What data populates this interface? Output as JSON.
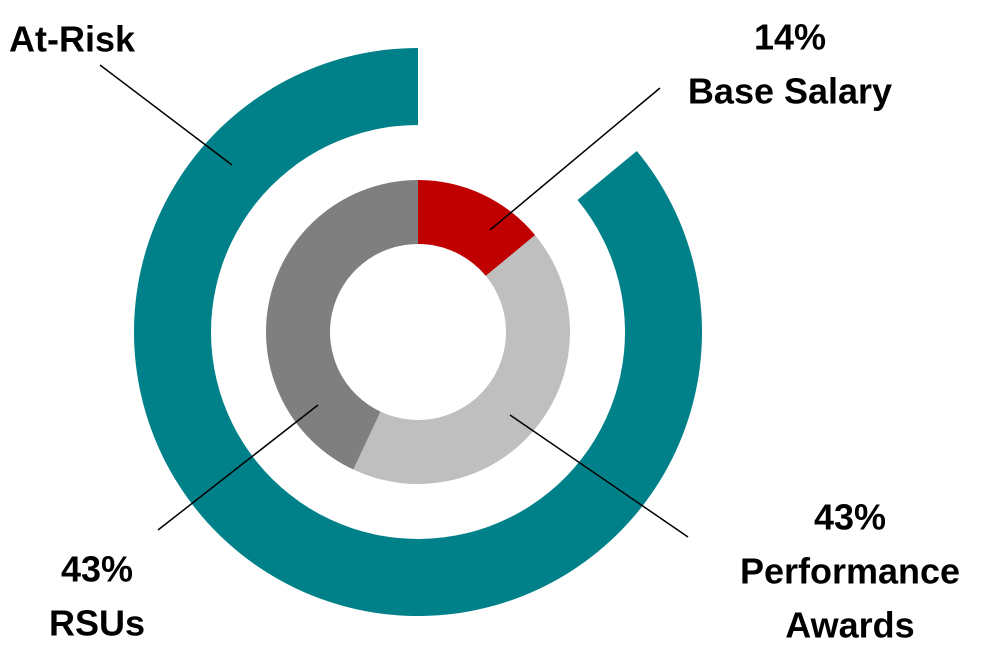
{
  "chart_data": {
    "type": "donut",
    "slices": [
      {
        "label_lines": [
          "Base Salary"
        ],
        "value": 14,
        "value_label": "14%",
        "color": "#c00000"
      },
      {
        "label_lines": [
          "Performance",
          "Awards"
        ],
        "value": 43,
        "value_label": "43%",
        "color": "#bfbfbf"
      },
      {
        "label_lines": [
          "RSUs"
        ],
        "value": 43,
        "value_label": "43%",
        "color": "#7f7f7f"
      }
    ],
    "outer": {
      "label": "At-Risk",
      "value": 86,
      "color": "#00818a"
    }
  }
}
